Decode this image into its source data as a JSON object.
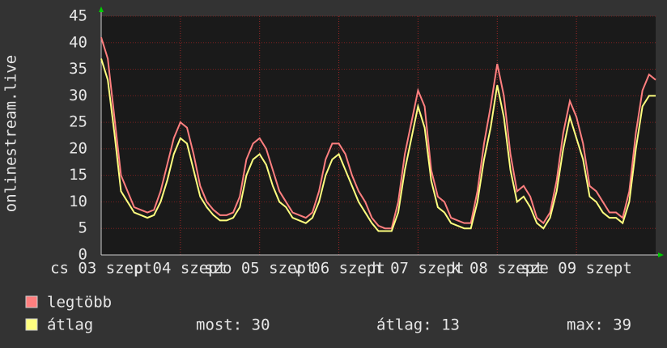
{
  "chart_data": {
    "type": "line",
    "y_label": "onlinestream.live",
    "x": [
      0,
      2,
      4,
      6,
      8,
      10,
      12,
      14,
      16,
      18,
      20,
      22,
      24,
      26,
      28,
      30,
      32,
      34,
      36,
      38,
      40,
      42,
      44,
      46,
      48,
      50,
      52,
      54,
      56,
      58,
      60,
      62,
      64,
      66,
      68,
      70,
      72,
      74,
      76,
      78,
      80,
      82,
      84,
      86,
      88,
      90,
      92,
      94,
      96,
      98,
      100,
      102,
      104,
      106,
      108,
      110,
      112,
      114,
      116,
      118,
      120,
      122,
      124,
      126,
      128,
      130,
      132,
      134,
      136,
      138,
      140,
      142,
      144,
      146,
      148,
      150,
      152,
      154,
      156,
      158,
      160,
      162,
      164,
      166,
      168
    ],
    "series": [
      {
        "name": "legtöbb",
        "color": "#ff7f7f",
        "values": [
          41,
          37,
          26,
          15,
          12,
          9,
          8.5,
          8,
          8.5,
          12,
          17,
          22,
          25,
          24,
          19,
          13,
          10,
          8.5,
          7.5,
          7.5,
          8,
          11,
          18,
          21,
          22,
          20,
          16,
          12,
          10,
          8,
          7.5,
          7,
          8,
          12,
          18,
          21,
          21,
          19,
          15,
          12,
          10,
          7,
          5.5,
          5,
          5,
          10,
          19,
          25,
          31,
          28,
          16,
          11,
          10,
          7,
          6.5,
          6,
          6,
          12,
          21,
          28,
          36,
          30,
          19,
          12,
          13,
          11,
          7,
          6,
          8,
          14,
          23,
          29,
          26,
          21,
          13,
          12,
          10,
          8,
          8,
          7,
          12,
          23,
          31,
          34,
          33
        ]
      },
      {
        "name": "átlag",
        "color": "#ffff7f",
        "values": [
          37,
          33,
          23,
          12,
          10,
          8,
          7.5,
          7,
          7.5,
          10,
          14,
          19,
          22,
          21,
          16,
          11,
          9,
          7.5,
          6.5,
          6.5,
          7,
          9,
          15,
          18,
          19,
          17,
          13,
          10,
          9,
          7,
          6.5,
          6,
          7,
          10,
          15,
          18,
          19,
          16,
          13,
          10,
          8,
          6,
          4.5,
          4.5,
          4.5,
          8,
          16,
          22,
          28,
          24,
          14,
          9,
          8,
          6,
          5.5,
          5,
          5,
          10,
          18,
          24,
          32,
          26,
          16,
          10,
          11,
          9,
          6,
          5,
          7,
          12,
          20,
          26,
          22,
          18,
          11,
          10,
          8,
          7,
          7,
          6,
          10,
          20,
          28,
          30,
          30
        ]
      }
    ],
    "xlim": [
      0,
      168
    ],
    "xticks": [
      {
        "value": 0,
        "label": "cs 03 szept"
      },
      {
        "value": 24,
        "label": "p 04 szept"
      },
      {
        "value": 48,
        "label": "szo 05 szept"
      },
      {
        "value": 72,
        "label": "v 06 szept"
      },
      {
        "value": 96,
        "label": "h 07 szept"
      },
      {
        "value": 120,
        "label": "k 08 szept"
      },
      {
        "value": 144,
        "label": "sze 09 szept"
      }
    ],
    "ylim": [
      0,
      45
    ],
    "yticks": [
      0,
      5,
      10,
      15,
      20,
      25,
      30,
      35,
      40,
      45
    ],
    "grid": true,
    "legend_stats": [
      "most: 30",
      "átlag: 13",
      "max: 39"
    ]
  }
}
